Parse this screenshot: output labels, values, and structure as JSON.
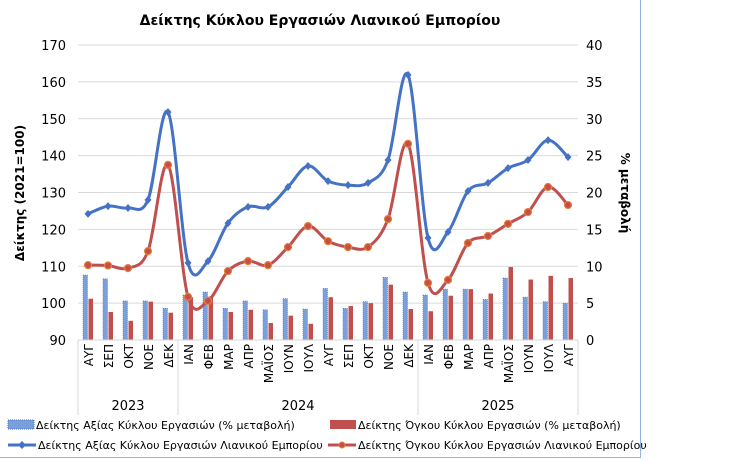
{
  "chart_data": {
    "type": "bar+line",
    "title": "Δείκτης Κύκλου Εργασιών Λιανικού Εμπορίου",
    "ylabel": "Δείκτης (2021=100)",
    "y2label": "% μεταβολή",
    "ylim": [
      90,
      170
    ],
    "yticks": [
      90,
      100,
      110,
      120,
      130,
      140,
      150,
      160,
      170
    ],
    "y2lim": [
      0,
      40
    ],
    "y2ticks": [
      0,
      5,
      10,
      15,
      20,
      25,
      30,
      35,
      40
    ],
    "grid": true,
    "legend": "bottom",
    "categories": [
      "ΑΥΓ",
      "ΣΕΠ",
      "ΟΚΤ",
      "ΝΟΕ",
      "ΔΕΚ",
      "ΙΑΝ",
      "ΦΕΒ",
      "ΜΑΡ",
      "ΑΠΡ",
      "ΜΑΪΟΣ",
      "ΙΟΥΝ",
      "ΙΟΥΛ",
      "ΑΥΓ",
      "ΣΕΠ",
      "ΟΚΤ",
      "ΝΟΕ",
      "ΔΕΚ",
      "ΙΑΝ",
      "ΦΕΒ",
      "ΜΑΡ",
      "ΑΠΡ",
      "ΜΑΪΟΣ",
      "ΙΟΥΝ",
      "ΙΟΥΛ",
      "ΑΥΓ"
    ],
    "year_groups": [
      {
        "label": "2023",
        "count": 5
      },
      {
        "label": "2024",
        "count": 12
      },
      {
        "label": "2025",
        "count": 8
      }
    ],
    "series": [
      {
        "name": "Δείκτης Αξίας Κύκλου Εργασιών (% μεταβολή)",
        "type": "bar",
        "axis": "right",
        "color": "#4472c4",
        "values": [
          8.8,
          8.3,
          5.3,
          5.3,
          4.3,
          6.1,
          6.5,
          4.3,
          5.3,
          4.1,
          5.6,
          4.2,
          7.0,
          4.3,
          5.2,
          8.5,
          6.5,
          6.1,
          6.9,
          6.9,
          5.5,
          8.4,
          5.8,
          5.2,
          5.0
        ]
      },
      {
        "name": "Δείκτης Όγκου Κύκλου Εργασιών (% μεταβολή)",
        "type": "bar",
        "axis": "right",
        "color": "#c0504d",
        "values": [
          5.6,
          3.8,
          2.6,
          5.2,
          3.7,
          5.8,
          5.9,
          3.8,
          4.1,
          2.3,
          3.3,
          2.2,
          5.8,
          4.6,
          5.0,
          7.5,
          4.2,
          3.9,
          6.0,
          6.9,
          6.3,
          9.9,
          8.2,
          8.7,
          8.4
        ]
      },
      {
        "name": "Δείκτης Αξίας Κύκλου Εργασιών Λιανικού Εμπορίου",
        "type": "line",
        "axis": "left",
        "color": "#4472c4",
        "values": [
          124.2,
          126.3,
          125.8,
          128.0,
          151.8,
          110.9,
          111.4,
          121.7,
          126.1,
          126.1,
          131.5,
          137.2,
          133.1,
          132.0,
          132.6,
          138.8,
          161.9,
          117.7,
          119.3,
          130.4,
          132.6,
          136.6,
          138.8,
          144.2,
          139.6
        ]
      },
      {
        "name": "Δείκτης Όγκου Κύκλου Εργασιών Λιανικού Εμπορίου",
        "type": "line",
        "axis": "left",
        "color": "#c0504d",
        "values": [
          110.3,
          110.2,
          109.5,
          114.1,
          137.5,
          101.7,
          100.6,
          108.7,
          111.4,
          110.3,
          115.2,
          120.9,
          116.8,
          115.2,
          115.2,
          122.8,
          143.2,
          105.5,
          106.3,
          116.3,
          118.2,
          121.5,
          124.7,
          131.5,
          126.6
        ]
      }
    ]
  }
}
